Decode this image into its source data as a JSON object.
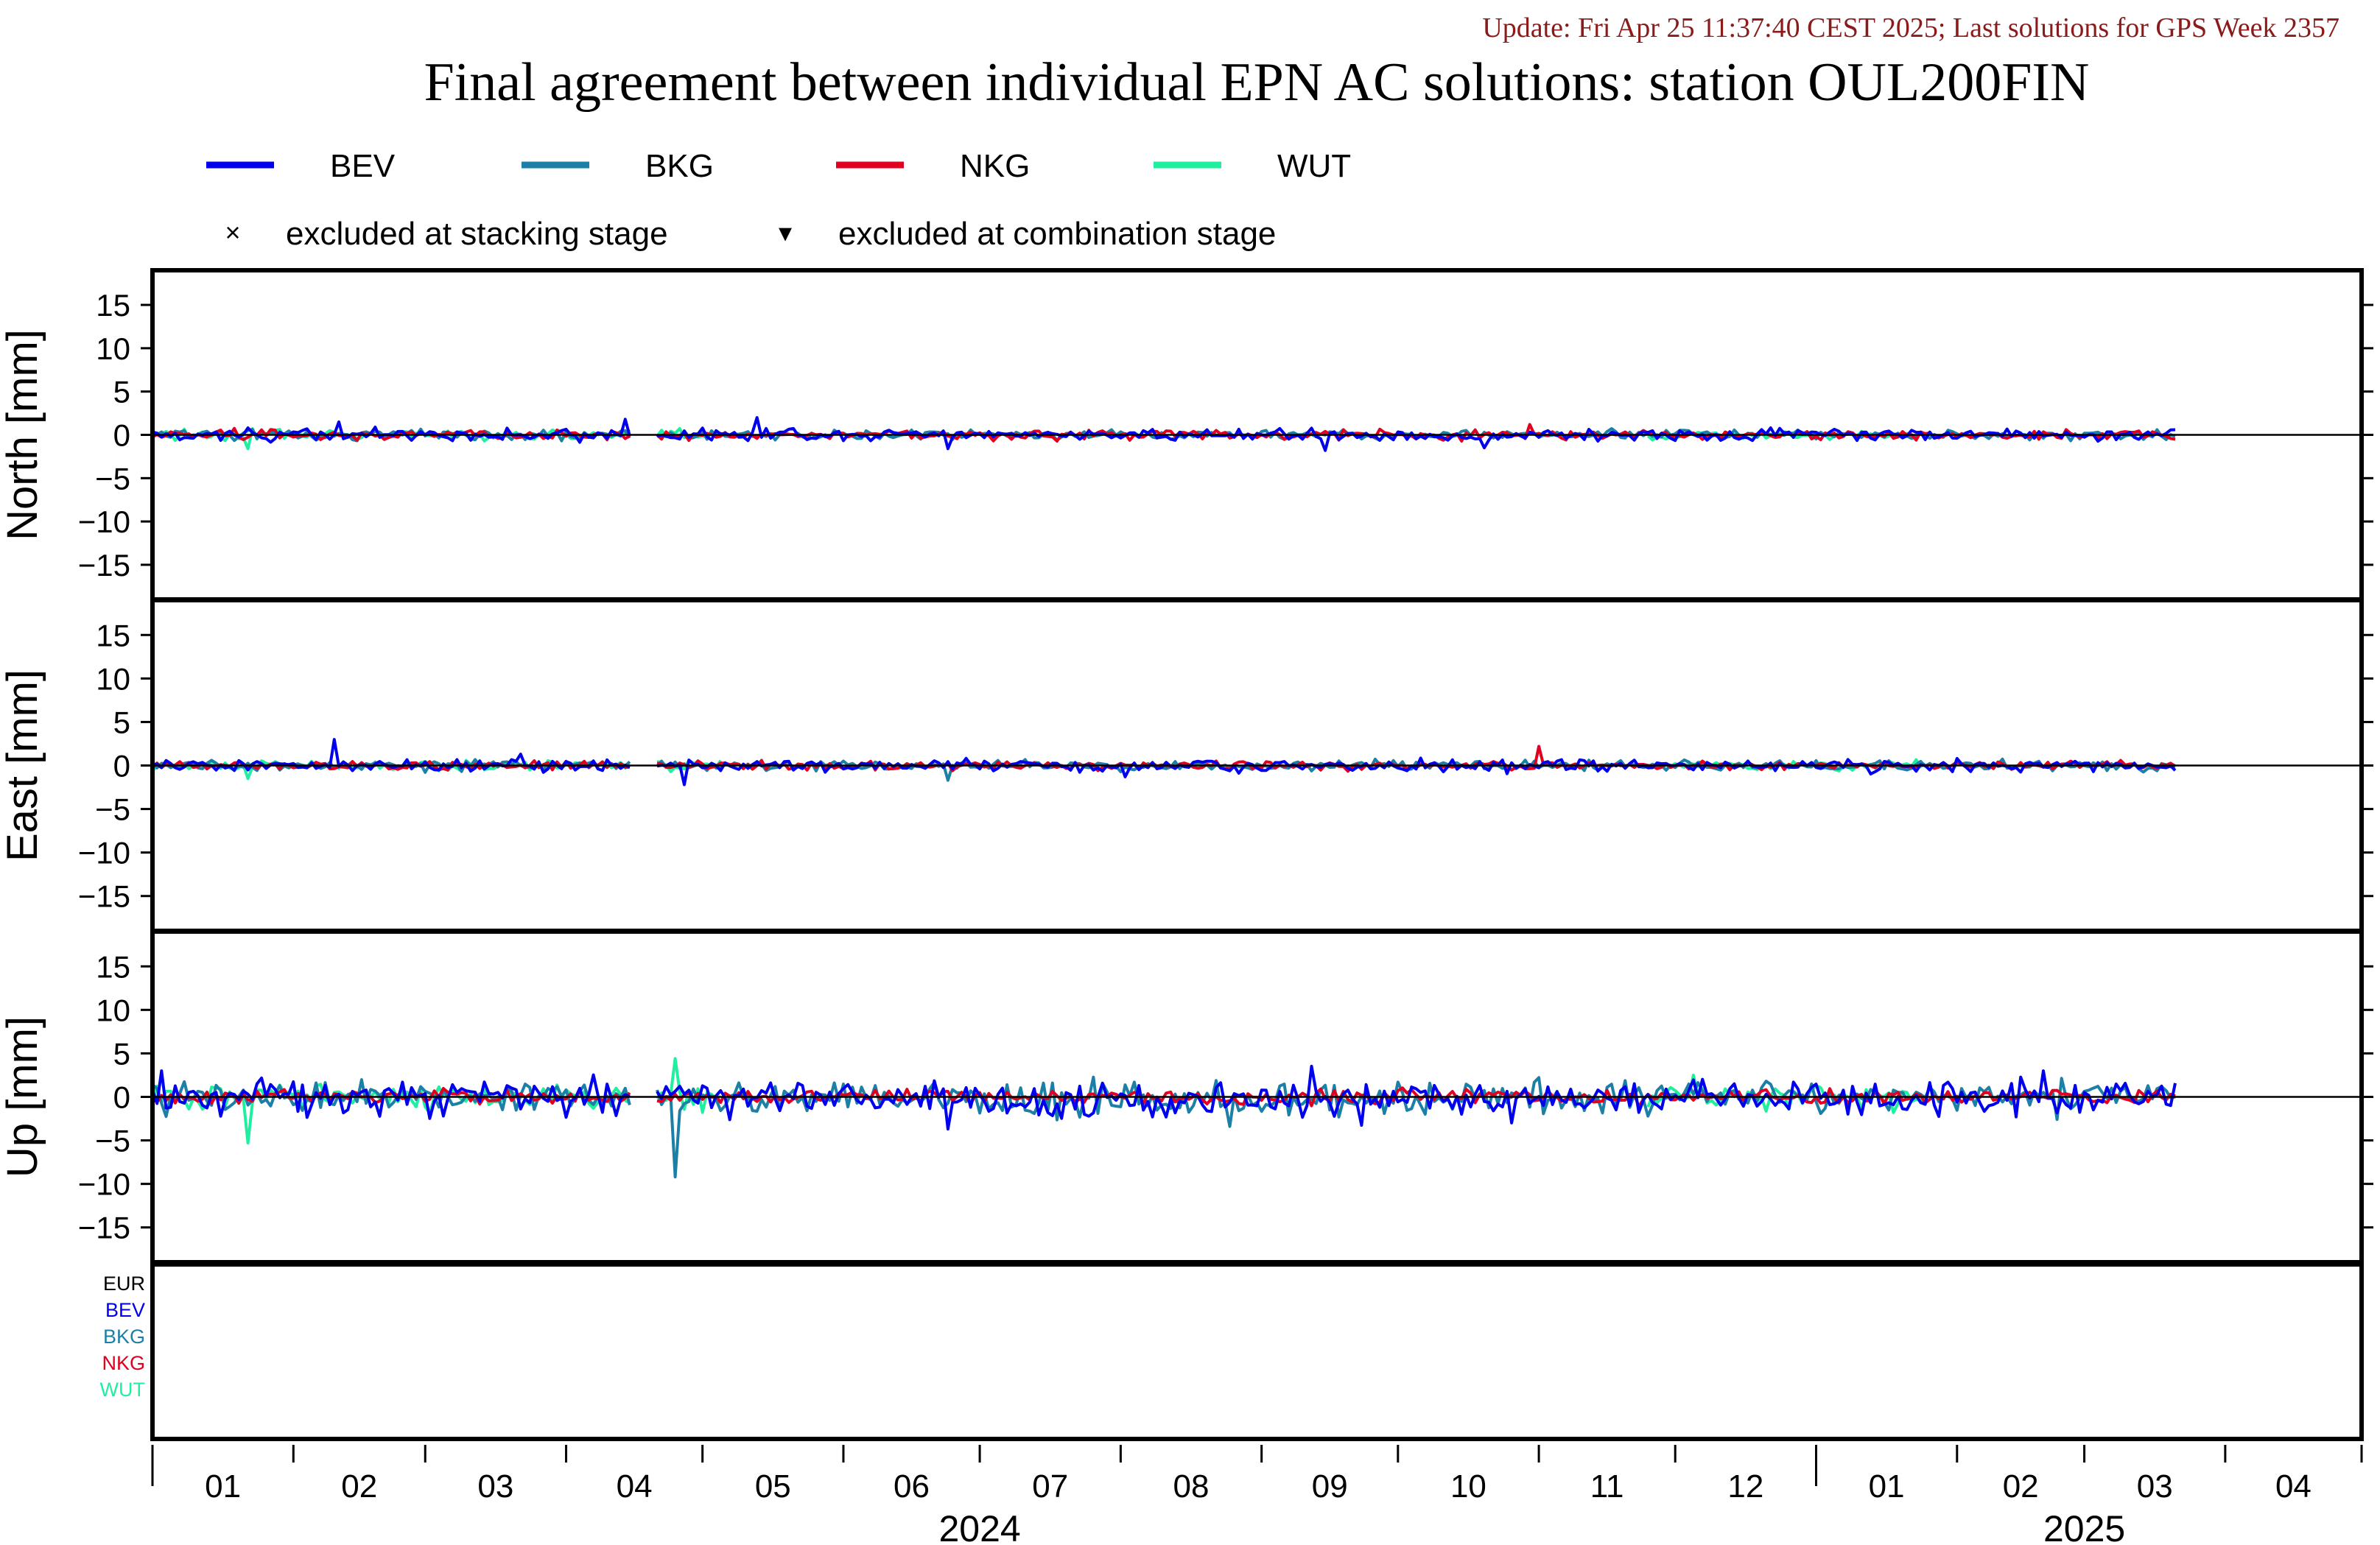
{
  "update_text": "Update: Fri Apr 25 11:37:40 CEST 2025; Last solutions for GPS Week 2357",
  "title": "Final agreement between individual EPN AC solutions: station OUL200FIN",
  "colors": {
    "update_text": "#8b1a1a",
    "BEV": "#0000ee",
    "BKG": "#1c7fa6",
    "NKG": "#e00020",
    "WUT": "#1ff0a0",
    "EUR": "#000000"
  },
  "legend": {
    "series": [
      {
        "name": "BEV",
        "color": "#0000ee"
      },
      {
        "name": "BKG",
        "color": "#1c7fa6"
      },
      {
        "name": "NKG",
        "color": "#e00020"
      },
      {
        "name": "WUT",
        "color": "#1ff0a0"
      }
    ],
    "markers": [
      {
        "symbol": "×",
        "label": "excluded at stacking stage"
      },
      {
        "symbol": "▾",
        "label": "excluded at combination stage"
      }
    ]
  },
  "bottom_panel_labels": [
    {
      "name": "EUR",
      "color": "#000000"
    },
    {
      "name": "BEV",
      "color": "#0000ee"
    },
    {
      "name": "BKG",
      "color": "#1c7fa6"
    },
    {
      "name": "NKG",
      "color": "#e00020"
    },
    {
      "name": "WUT",
      "color": "#1ff0a0"
    }
  ],
  "chart_data": {
    "type": "line",
    "x_range": [
      "2024-01-01",
      "2025-05-01"
    ],
    "x_month_labels": [
      "01",
      "02",
      "03",
      "04",
      "05",
      "06",
      "07",
      "08",
      "09",
      "10",
      "11",
      "12",
      "01",
      "02",
      "03",
      "04"
    ],
    "x_year_labels": [
      {
        "label": "2024",
        "center": "2024-07-01"
      },
      {
        "label": "2025",
        "center": "2025-03-01"
      }
    ],
    "series_names": [
      "BEV",
      "BKG",
      "NKG",
      "WUT"
    ],
    "panels": [
      {
        "ylabel": "North [mm]",
        "ylim": [
          -19,
          19
        ],
        "yticks": [
          15,
          10,
          5,
          0,
          -5,
          -10,
          -15
        ],
        "noise_mm": {
          "BEV": 0.45,
          "BKG": 0.35,
          "NKG": 0.35,
          "WUT": 0.4
        },
        "spikes": [
          {
            "series": "BEV",
            "date": "2024-02-11",
            "value": 1.5
          },
          {
            "series": "BEV",
            "date": "2024-04-14",
            "value": 1.8
          },
          {
            "series": "BEV",
            "date": "2024-05-13",
            "value": 2.0
          },
          {
            "series": "WUT",
            "date": "2024-01-22",
            "value": -1.6
          },
          {
            "series": "BEV",
            "date": "2024-06-24",
            "value": -1.6
          },
          {
            "series": "BEV",
            "date": "2024-09-15",
            "value": -1.8
          },
          {
            "series": "NKG",
            "date": "2024-10-30",
            "value": 1.2
          },
          {
            "series": "BEV",
            "date": "2024-10-20",
            "value": -1.5
          }
        ]
      },
      {
        "ylabel": "East [mm]",
        "ylim": [
          -19,
          19
        ],
        "yticks": [
          15,
          10,
          5,
          0,
          -5,
          -10,
          -15
        ],
        "noise_mm": {
          "BEV": 0.45,
          "BKG": 0.35,
          "NKG": 0.3,
          "WUT": 0.35
        },
        "spikes": [
          {
            "series": "BEV",
            "date": "2024-02-10",
            "value": 3.0
          },
          {
            "series": "BEV",
            "date": "2024-03-22",
            "value": 1.3
          },
          {
            "series": "WUT",
            "date": "2024-01-22",
            "value": -1.5
          },
          {
            "series": "BEV",
            "date": "2024-04-27",
            "value": -2.2
          },
          {
            "series": "BKG",
            "date": "2024-06-24",
            "value": -1.7
          },
          {
            "series": "NKG",
            "date": "2024-11-01",
            "value": 2.2
          },
          {
            "series": "BEV",
            "date": "2024-08-02",
            "value": -1.3
          }
        ]
      },
      {
        "ylabel": "Up [mm]",
        "ylim": [
          -19,
          19
        ],
        "yticks": [
          15,
          10,
          5,
          0,
          -5,
          -10,
          -15
        ],
        "noise_mm": {
          "BEV": 1.2,
          "BKG": 1.1,
          "NKG": 0.5,
          "WUT": 0.9
        },
        "spikes": [
          {
            "series": "BEV",
            "date": "2024-01-03",
            "value": 3.0
          },
          {
            "series": "WUT",
            "date": "2024-01-22",
            "value": -5.3
          },
          {
            "series": "BKG",
            "date": "2024-04-25",
            "value": -9.2
          },
          {
            "series": "WUT",
            "date": "2024-04-25",
            "value": 4.4
          },
          {
            "series": "BEV",
            "date": "2024-06-24",
            "value": -3.7
          },
          {
            "series": "BKG",
            "date": "2024-08-25",
            "value": -3.3
          },
          {
            "series": "BEV",
            "date": "2024-09-12",
            "value": 3.0
          },
          {
            "series": "BEV",
            "date": "2024-10-26",
            "value": -3.0
          },
          {
            "series": "WUT",
            "date": "2024-12-05",
            "value": 2.5
          },
          {
            "series": "BEV",
            "date": "2025-02-20",
            "value": 3.0
          },
          {
            "series": "BKG",
            "date": "2025-02-23",
            "value": -2.6
          },
          {
            "series": "WUT",
            "date": "2025-01-18",
            "value": -1.8
          }
        ]
      }
    ],
    "series_windows": {
      "BEV": [
        [
          "2024-01-01",
          "2025-03-21"
        ]
      ],
      "BKG": [
        [
          "2024-01-01",
          "2025-03-21"
        ]
      ],
      "NKG": [
        [
          "2024-01-01",
          "2025-03-21"
        ]
      ],
      "WUT": [
        [
          "2024-01-01",
          "2024-05-05"
        ],
        [
          "2024-11-25",
          "2025-01-25"
        ]
      ]
    },
    "data_gap": [
      "2024-04-16",
      "2024-04-20"
    ],
    "grid": false,
    "legend_position": "top"
  }
}
